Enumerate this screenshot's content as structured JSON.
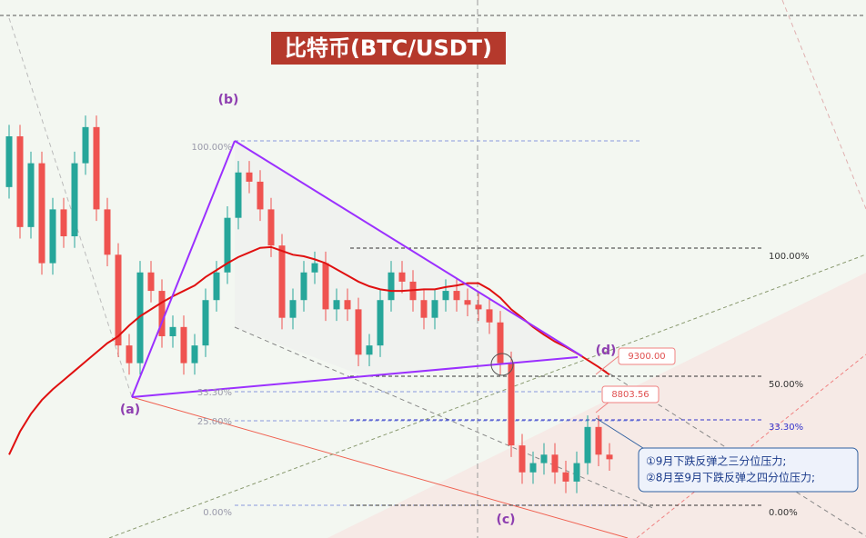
{
  "chart_data": {
    "type": "candlestick",
    "title": "比特币(BTC/USDT)",
    "ylim": [
      6936,
      13933
    ],
    "up_color": "#26a69a",
    "down_color": "#ef5350",
    "open": [
      11500,
      12160,
      10980,
      11810,
      10510,
      11210,
      10860,
      11810,
      12280,
      11210,
      10620,
      9440,
      9210,
      10390,
      10150,
      9560,
      9680,
      9210,
      9440,
      10030,
      10390,
      11100,
      11690,
      11570,
      11210,
      10740,
      9800,
      10030,
      10390,
      10510,
      9910,
      10030,
      9910,
      9320,
      9440,
      10030,
      10390,
      10270,
      10030,
      9800,
      10030,
      10150,
      10030,
      9970,
      9910,
      9740,
      9210,
      8140,
      7790,
      7910,
      8020,
      7790,
      7670,
      7910,
      8380,
      8020
    ],
    "high": [
      12310,
      12310,
      11960,
      11960,
      11360,
      11360,
      11960,
      12430,
      12430,
      11360,
      10770,
      9590,
      10540,
      10540,
      10300,
      9830,
      9830,
      9590,
      10180,
      10540,
      11250,
      11840,
      11840,
      11720,
      11360,
      10890,
      10180,
      10540,
      10660,
      10660,
      10180,
      10180,
      10060,
      9590,
      10180,
      10540,
      10540,
      10420,
      10180,
      10180,
      10300,
      10300,
      10180,
      10120,
      10060,
      9890,
      9360,
      8290,
      8060,
      8170,
      8170,
      7940,
      8060,
      8530,
      8530,
      8170
    ],
    "low": [
      11350,
      10830,
      10830,
      10360,
      10360,
      10710,
      10710,
      11660,
      11060,
      10470,
      9290,
      9060,
      9060,
      10000,
      9410,
      9410,
      9060,
      9060,
      9290,
      9880,
      10240,
      10950,
      11420,
      11060,
      10590,
      9650,
      9650,
      9880,
      10240,
      9760,
      9760,
      9760,
      9170,
      9170,
      9290,
      9880,
      10120,
      9880,
      9650,
      9650,
      9880,
      9880,
      9820,
      9760,
      9590,
      9060,
      7990,
      7640,
      7640,
      7760,
      7640,
      7520,
      7520,
      7760,
      7870,
      7810
    ],
    "close": [
      12160,
      10980,
      11810,
      10510,
      11210,
      10860,
      11810,
      12280,
      11210,
      10620,
      9440,
      9210,
      10390,
      10150,
      9560,
      9680,
      9210,
      9440,
      10030,
      10390,
      11100,
      11690,
      11570,
      11210,
      10740,
      9800,
      10030,
      10390,
      10510,
      9910,
      10030,
      9910,
      9320,
      9440,
      10030,
      10390,
      10270,
      10030,
      9800,
      10030,
      10150,
      10030,
      9970,
      9910,
      9740,
      9210,
      8140,
      7790,
      7910,
      8020,
      7790,
      7670,
      7910,
      8380,
      8020,
      7960
    ],
    "ma": {
      "color": "#e01010",
      "values": [
        8020,
        8320,
        8550,
        8730,
        8870,
        8990,
        9110,
        9230,
        9350,
        9470,
        9560,
        9700,
        9820,
        9910,
        10000,
        10080,
        10150,
        10220,
        10330,
        10420,
        10510,
        10590,
        10650,
        10710,
        10720,
        10670,
        10620,
        10600,
        10560,
        10510,
        10430,
        10350,
        10270,
        10210,
        10170,
        10150,
        10150,
        10160,
        10170,
        10170,
        10200,
        10220,
        10250,
        10250,
        10170,
        10060,
        9910,
        9800,
        9680,
        9580,
        9490,
        9420,
        9340,
        9250,
        9160,
        9060
      ]
    },
    "points": [
      "(a)",
      "(b)",
      "(c)",
      "(d)"
    ],
    "fib_left": [
      "100.00%",
      "33.30%",
      "25.00%",
      "0.00%"
    ],
    "fib_right": [
      "100.00%",
      "50.00%",
      "33.30%",
      "0.00%"
    ],
    "price_labels": [
      {
        "value": 9300,
        "label": "9300.00"
      },
      {
        "value": 8803.56,
        "label": "8803.56"
      }
    ],
    "notes": [
      "①9月下跌反弹之三分位压力;",
      "②8月至9月下跌反弹之四分位压力;"
    ]
  }
}
